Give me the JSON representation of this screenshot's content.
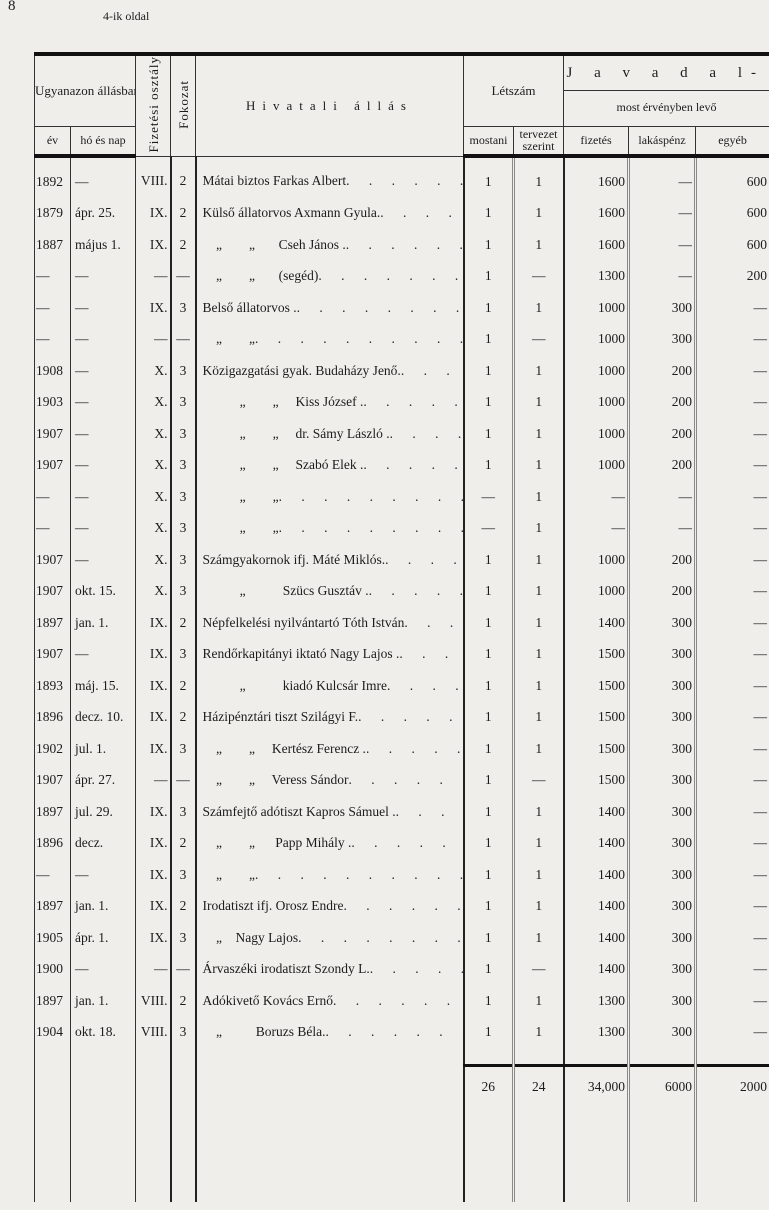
{
  "page_number": "8",
  "page_label": "4-ik oldal",
  "header": {
    "service_group": "Ugyanazon állásban szolgál",
    "year": "év",
    "month_day": "hó és nap",
    "pay_class": "Fizetési osztály",
    "grade": "Fokozat",
    "position": "Hivatali állás",
    "headcount": "Létszám",
    "current": "mostani",
    "planned": "tervezet szerint",
    "emoluments": "J a v a d a l-",
    "currently_valid": "most érvényben levő",
    "salary": "fizetés",
    "housing": "lakáspénz",
    "other": "egyéb"
  },
  "rows": [
    [
      "1892",
      "—",
      "VIII.",
      "2",
      "Mátai biztos Farkas Albert",
      "1",
      "1",
      "1600",
      "—",
      "600"
    ],
    [
      "1879",
      "ápr. 25.",
      "IX.",
      "2",
      "Külső állatorvos Axmann Gyula.",
      "1",
      "1",
      "1600",
      "—",
      "600"
    ],
    [
      "1887",
      "május 1.",
      "IX.",
      "2",
      "    „        „       Cseh János .",
      "1",
      "1",
      "1600",
      "—",
      "600"
    ],
    [
      "—",
      "—",
      "—",
      "—",
      "    „        „       (segéd)",
      "1",
      "—",
      "1300",
      "—",
      "200"
    ],
    [
      "—",
      "—",
      "IX.",
      "3",
      "Belső állatorvos .",
      "1",
      "1",
      "1000",
      "300",
      "—"
    ],
    [
      "—",
      "—",
      "—",
      "—",
      "    „        „",
      "1",
      "—",
      "1000",
      "300",
      "—"
    ],
    [
      "1908",
      "—",
      "X.",
      "3",
      "Közigazgatási gyak. Budaházy Jenő.",
      "1",
      "1",
      "1000",
      "200",
      "—"
    ],
    [
      "1903",
      "—",
      "X.",
      "3",
      "           „        „     Kiss József .",
      "1",
      "1",
      "1000",
      "200",
      "—"
    ],
    [
      "1907",
      "—",
      "X.",
      "3",
      "           „        „     dr. Sámy László .",
      "1",
      "1",
      "1000",
      "200",
      "—"
    ],
    [
      "1907",
      "—",
      "X.",
      "3",
      "           „        „     Szabó Elek .",
      "1",
      "1",
      "1000",
      "200",
      "—"
    ],
    [
      "—",
      "—",
      "X.",
      "3",
      "           „        „",
      "—",
      "1",
      "—",
      "—",
      "—"
    ],
    [
      "—",
      "—",
      "X.",
      "3",
      "           „        „",
      "—",
      "1",
      "—",
      "—",
      "—"
    ],
    [
      "1907",
      "—",
      "X.",
      "3",
      "Számgyakornok ifj. Máté Miklós.",
      "1",
      "1",
      "1000",
      "200",
      "—"
    ],
    [
      "1907",
      "okt. 15.",
      "X.",
      "3",
      "           „           Szücs Gusztáv .",
      "1",
      "1",
      "1000",
      "200",
      "—"
    ],
    [
      "1897",
      "jan. 1.",
      "IX.",
      "2",
      "Népfelkelési nyilvántartó Tóth István",
      "1",
      "1",
      "1400",
      "300",
      "—"
    ],
    [
      "1907",
      "—",
      "IX.",
      "3",
      "Rendőrkapitányi iktató Nagy Lajos .",
      "1",
      "1",
      "1500",
      "300",
      "—"
    ],
    [
      "1893",
      "máj. 15.",
      "IX.",
      "2",
      "           „           kiadó Kulcsár Imre",
      "1",
      "1",
      "1500",
      "300",
      "—"
    ],
    [
      "1896",
      "decz. 10.",
      "IX.",
      "2",
      "Házipénztári tiszt Szilágyi F.",
      "1",
      "1",
      "1500",
      "300",
      "—"
    ],
    [
      "1902",
      "jul. 1.",
      "IX.",
      "3",
      "    „        „     Kertész Ferencz .",
      "1",
      "1",
      "1500",
      "300",
      "—"
    ],
    [
      "1907",
      "ápr. 27.",
      "—",
      "—",
      "    „        „     Veress Sándor",
      "1",
      "—",
      "1500",
      "300",
      "—"
    ],
    [
      "1897",
      "jul. 29.",
      "IX.",
      "3",
      "Számfejtő adótiszt Kapros Sámuel .",
      "1",
      "1",
      "1400",
      "300",
      "—"
    ],
    [
      "1896",
      "decz.",
      "IX.",
      "2",
      "    „        „      Papp Mihály .",
      "1",
      "1",
      "1400",
      "300",
      "—"
    ],
    [
      "—",
      "—",
      "IX.",
      "3",
      "    „        „",
      "1",
      "1",
      "1400",
      "300",
      "—"
    ],
    [
      "1897",
      "jan. 1.",
      "IX.",
      "2",
      "Irodatiszt ifj. Orosz Endre",
      "1",
      "1",
      "1400",
      "300",
      "—"
    ],
    [
      "1905",
      "ápr. 1.",
      "IX.",
      "3",
      "    „    Nagy Lajos",
      "1",
      "1",
      "1400",
      "300",
      "—"
    ],
    [
      "1900",
      "—",
      "—",
      "—",
      "Árvaszéki irodatiszt Szondy L.",
      "1",
      "—",
      "1400",
      "300",
      "—"
    ],
    [
      "1897",
      "jan. 1.",
      "VIII.",
      "2",
      "Adókivető Kovács Ernő",
      "1",
      "1",
      "1300",
      "300",
      "—"
    ],
    [
      "1904",
      "okt. 18.",
      "VIII.",
      "3",
      "    „          Boruzs Béla.",
      "1",
      "1",
      "1300",
      "300",
      "—"
    ]
  ],
  "totals": {
    "current": "26",
    "planned": "24",
    "salary": "34,000",
    "housing": "6000",
    "other": "2000"
  }
}
